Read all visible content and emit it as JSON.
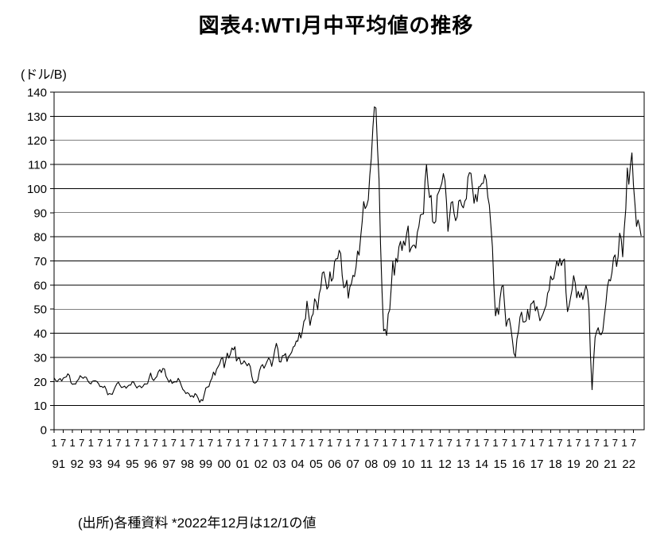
{
  "title": "図表4:WTI月中平均値の推移",
  "y_unit": "(ドル/B)",
  "caption": "(出所)各種資料 *2022年12月は12/1の値",
  "chart_data": {
    "type": "line",
    "title": "図表4:WTI月中平均値の推移",
    "ylabel": "(ドル/B)",
    "xlabel": "",
    "ylim": [
      0,
      140
    ],
    "ytick_step": 10,
    "yticks": [
      0,
      10,
      20,
      30,
      40,
      50,
      60,
      70,
      80,
      90,
      100,
      110,
      120,
      130,
      140
    ],
    "grid": true,
    "legend": "none",
    "line_color": "#000000",
    "x_start": "1991-01",
    "x_end": "2022-12",
    "x_tick_month_labels": [
      "1",
      "7"
    ],
    "years": [
      "91",
      "92",
      "93",
      "94",
      "95",
      "96",
      "97",
      "98",
      "99",
      "00",
      "01",
      "02",
      "03",
      "04",
      "05",
      "06",
      "07",
      "08",
      "09",
      "10",
      "11",
      "12",
      "13",
      "14",
      "15",
      "16",
      "17",
      "18",
      "19",
      "20",
      "21",
      "22"
    ],
    "series": [
      {
        "name": "WTI monthly average price (USD per barrel)",
        "values": [
          21.5,
          20.5,
          19.9,
          20.8,
          21.2,
          20.2,
          21.4,
          21.7,
          21.9,
          23.2,
          22.5,
          19.5,
          18.8,
          19.0,
          18.9,
          20.2,
          20.9,
          22.4,
          21.8,
          21.3,
          21.9,
          21.7,
          20.3,
          19.4,
          19.0,
          20.1,
          20.3,
          20.3,
          19.9,
          19.1,
          17.9,
          18.0,
          17.5,
          18.1,
          16.7,
          14.5,
          15.0,
          14.8,
          14.7,
          16.4,
          17.9,
          19.1,
          19.7,
          18.4,
          17.5,
          17.7,
          18.1,
          17.2,
          18.0,
          18.5,
          18.5,
          19.9,
          19.7,
          18.4,
          17.3,
          18.0,
          18.2,
          17.4,
          18.0,
          19.0,
          18.9,
          19.1,
          21.4,
          23.5,
          21.2,
          20.4,
          21.3,
          22.0,
          24.0,
          24.9,
          23.7,
          25.4,
          25.2,
          22.2,
          21.0,
          19.7,
          20.8,
          19.2,
          19.7,
          19.9,
          19.8,
          21.3,
          20.2,
          18.3,
          16.7,
          16.1,
          15.0,
          15.4,
          14.9,
          13.7,
          14.1,
          13.4,
          15.0,
          14.4,
          13.0,
          11.3,
          12.5,
          12.0,
          14.7,
          17.3,
          17.7,
          17.9,
          20.1,
          21.3,
          23.9,
          22.6,
          25.0,
          26.1,
          27.2,
          29.4,
          29.9,
          25.7,
          28.8,
          31.8,
          29.7,
          31.3,
          33.9,
          33.1,
          34.4,
          28.5,
          29.6,
          29.6,
          27.2,
          27.5,
          28.6,
          27.6,
          26.5,
          27.5,
          26.2,
          22.2,
          19.7,
          19.3,
          19.7,
          20.7,
          24.4,
          26.3,
          27.0,
          25.5,
          26.9,
          28.4,
          29.7,
          28.9,
          26.3,
          29.4,
          33.0,
          35.8,
          33.5,
          28.2,
          28.1,
          30.7,
          30.8,
          31.6,
          28.3,
          30.3,
          31.1,
          32.1,
          34.3,
          34.7,
          36.8,
          36.7,
          40.3,
          38.0,
          40.8,
          44.9,
          46.0,
          53.3,
          48.5,
          43.3,
          46.8,
          48.0,
          54.3,
          53.0,
          49.8,
          56.3,
          58.7,
          65.0,
          65.5,
          62.4,
          58.3,
          59.4,
          65.5,
          61.6,
          62.9,
          69.7,
          70.9,
          70.9,
          74.4,
          73.1,
          63.9,
          58.9,
          59.4,
          62.0,
          54.6,
          59.3,
          60.6,
          64.0,
          63.5,
          67.5,
          74.1,
          72.4,
          79.9,
          86.2,
          94.6,
          91.7,
          93.0,
          95.4,
          105.5,
          112.6,
          125.4,
          133.9,
          133.4,
          116.7,
          103.9,
          76.7,
          57.4,
          41.0,
          41.7,
          39.1,
          48.0,
          49.8,
          59.2,
          69.7,
          64.1,
          71.1,
          69.5,
          75.8,
          78.1,
          74.3,
          78.2,
          76.4,
          81.2,
          84.5,
          73.7,
          75.4,
          76.4,
          76.6,
          75.3,
          81.9,
          84.3,
          89.0,
          89.4,
          89.5,
          102.9,
          110.0,
          101.3,
          96.3,
          97.2,
          86.3,
          85.6,
          86.4,
          97.2,
          98.6,
          100.3,
          102.3,
          106.2,
          103.3,
          94.7,
          82.3,
          87.9,
          94.1,
          94.6,
          89.6,
          86.7,
          88.3,
          94.8,
          95.3,
          93.0,
          92.0,
          94.8,
          95.8,
          104.7,
          106.6,
          106.3,
          100.5,
          93.9,
          97.6,
          94.6,
          100.8,
          100.8,
          102.1,
          102.2,
          105.8,
          103.6,
          96.5,
          93.2,
          84.4,
          75.8,
          59.3,
          47.2,
          50.6,
          47.8,
          54.5,
          59.3,
          59.8,
          51.2,
          42.9,
          45.5,
          46.2,
          42.4,
          37.2,
          31.7,
          30.3,
          37.6,
          41.0,
          46.7,
          48.8,
          44.7,
          44.7,
          45.2,
          49.8,
          45.7,
          52.0,
          52.5,
          53.5,
          49.3,
          51.1,
          48.5,
          45.2,
          46.6,
          48.0,
          49.8,
          51.6,
          56.6,
          57.9,
          63.7,
          62.2,
          62.7,
          66.3,
          70.0,
          67.9,
          71.0,
          68.1,
          70.2,
          70.8,
          57.0,
          49.0,
          51.4,
          54.9,
          58.2,
          63.9,
          60.8,
          54.7,
          57.4,
          54.8,
          56.9,
          54.0,
          57.0,
          59.8,
          57.5,
          50.5,
          30.5,
          16.6,
          28.6,
          38.3,
          40.8,
          42.3,
          39.6,
          39.4,
          41.0,
          47.0,
          52.0,
          59.0,
          62.3,
          61.7,
          65.2,
          71.4,
          72.5,
          67.7,
          71.6,
          81.5,
          79.2,
          71.7,
          83.2,
          91.6,
          108.5,
          101.8,
          109.5,
          114.8,
          101.6,
          93.7,
          84.3,
          87.0,
          84.4,
          80.5
        ]
      }
    ]
  }
}
